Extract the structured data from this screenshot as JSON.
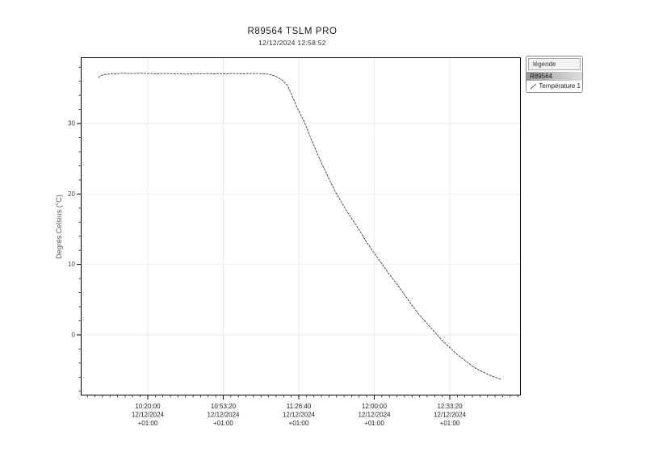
{
  "legend": {
    "header": "légende",
    "device": "R89564",
    "series_label": "Température 1",
    "marker_color": "#555555"
  },
  "chart_data": {
    "type": "line",
    "title": "R89564 TSLM PRO",
    "subtitle": "12/12/2024 12:58:52",
    "ylabel": "Degrés Celsius (°C)",
    "x_unit": "seconds since midnight, UTC+01:00",
    "x_range": [
      35425,
      47082
    ],
    "y_range": [
      -8.6,
      39.4
    ],
    "x_minor_step": 200,
    "y_minor_step": 2,
    "grid": true,
    "line_color": "#3f3f3f",
    "grid_color": "#ebebeb",
    "axis_color": "#000000",
    "x_ticks": [
      {
        "t": 37200,
        "lines": [
          "10:20:00",
          "12/12/2024",
          "+01:00"
        ]
      },
      {
        "t": 39200,
        "lines": [
          "10:53:20",
          "12/12/2024",
          "+01:00"
        ]
      },
      {
        "t": 41200,
        "lines": [
          "11:26:40",
          "12/12/2024",
          "+01:00"
        ]
      },
      {
        "t": 43200,
        "lines": [
          "12:00:00",
          "12/12/2024",
          "+01:00"
        ]
      },
      {
        "t": 45200,
        "lines": [
          "12:33:20",
          "12/12/2024",
          "+01:00"
        ]
      }
    ],
    "y_ticks": [
      {
        "v": 0,
        "label": "0"
      },
      {
        "v": 10,
        "label": "10"
      },
      {
        "v": 20,
        "label": "20"
      },
      {
        "v": 30,
        "label": "30"
      }
    ],
    "series": [
      {
        "name": "Température 1",
        "points": [
          [
            35895,
            36.5
          ],
          [
            35950,
            36.8
          ],
          [
            36050,
            36.95
          ],
          [
            36150,
            37.0
          ],
          [
            36250,
            37.1
          ],
          [
            36350,
            37.05
          ],
          [
            36450,
            37.1
          ],
          [
            36550,
            37.15
          ],
          [
            36700,
            37.1
          ],
          [
            36850,
            37.1
          ],
          [
            37000,
            37.15
          ],
          [
            37150,
            37.1
          ],
          [
            37300,
            37.1
          ],
          [
            37450,
            37.05
          ],
          [
            37600,
            37.1
          ],
          [
            37750,
            37.1
          ],
          [
            37900,
            37.05
          ],
          [
            38050,
            37.1
          ],
          [
            38200,
            37.0
          ],
          [
            38350,
            37.05
          ],
          [
            38500,
            37.1
          ],
          [
            38650,
            37.05
          ],
          [
            38800,
            37.1
          ],
          [
            38950,
            37.05
          ],
          [
            39100,
            37.1
          ],
          [
            39250,
            37.05
          ],
          [
            39400,
            37.1
          ],
          [
            39550,
            37.1
          ],
          [
            39700,
            37.05
          ],
          [
            39850,
            37.1
          ],
          [
            40000,
            37.1
          ],
          [
            40150,
            37.1
          ],
          [
            40300,
            37.05
          ],
          [
            40450,
            36.95
          ],
          [
            40600,
            36.7
          ],
          [
            40750,
            36.2
          ],
          [
            40900,
            35.4
          ],
          [
            41050,
            33.6
          ],
          [
            41150,
            32.3
          ],
          [
            41350,
            30.2
          ],
          [
            41520,
            27.9
          ],
          [
            41700,
            25.6
          ],
          [
            41880,
            23.5
          ],
          [
            42050,
            21.6
          ],
          [
            42200,
            20.0
          ],
          [
            42400,
            18.2
          ],
          [
            42590,
            16.6
          ],
          [
            42790,
            15.0
          ],
          [
            42980,
            13.3
          ],
          [
            43200,
            11.6
          ],
          [
            43400,
            10.1
          ],
          [
            43600,
            8.6
          ],
          [
            43800,
            7.2
          ],
          [
            44000,
            5.7
          ],
          [
            44200,
            4.2
          ],
          [
            44400,
            2.8
          ],
          [
            44600,
            1.6
          ],
          [
            44800,
            0.4
          ],
          [
            45000,
            -0.8
          ],
          [
            45200,
            -1.8
          ],
          [
            45400,
            -2.8
          ],
          [
            45600,
            -3.6
          ],
          [
            45840,
            -4.6
          ],
          [
            46050,
            -5.2
          ],
          [
            46250,
            -5.7
          ],
          [
            46400,
            -6.0
          ],
          [
            46550,
            -6.3
          ]
        ]
      }
    ]
  }
}
